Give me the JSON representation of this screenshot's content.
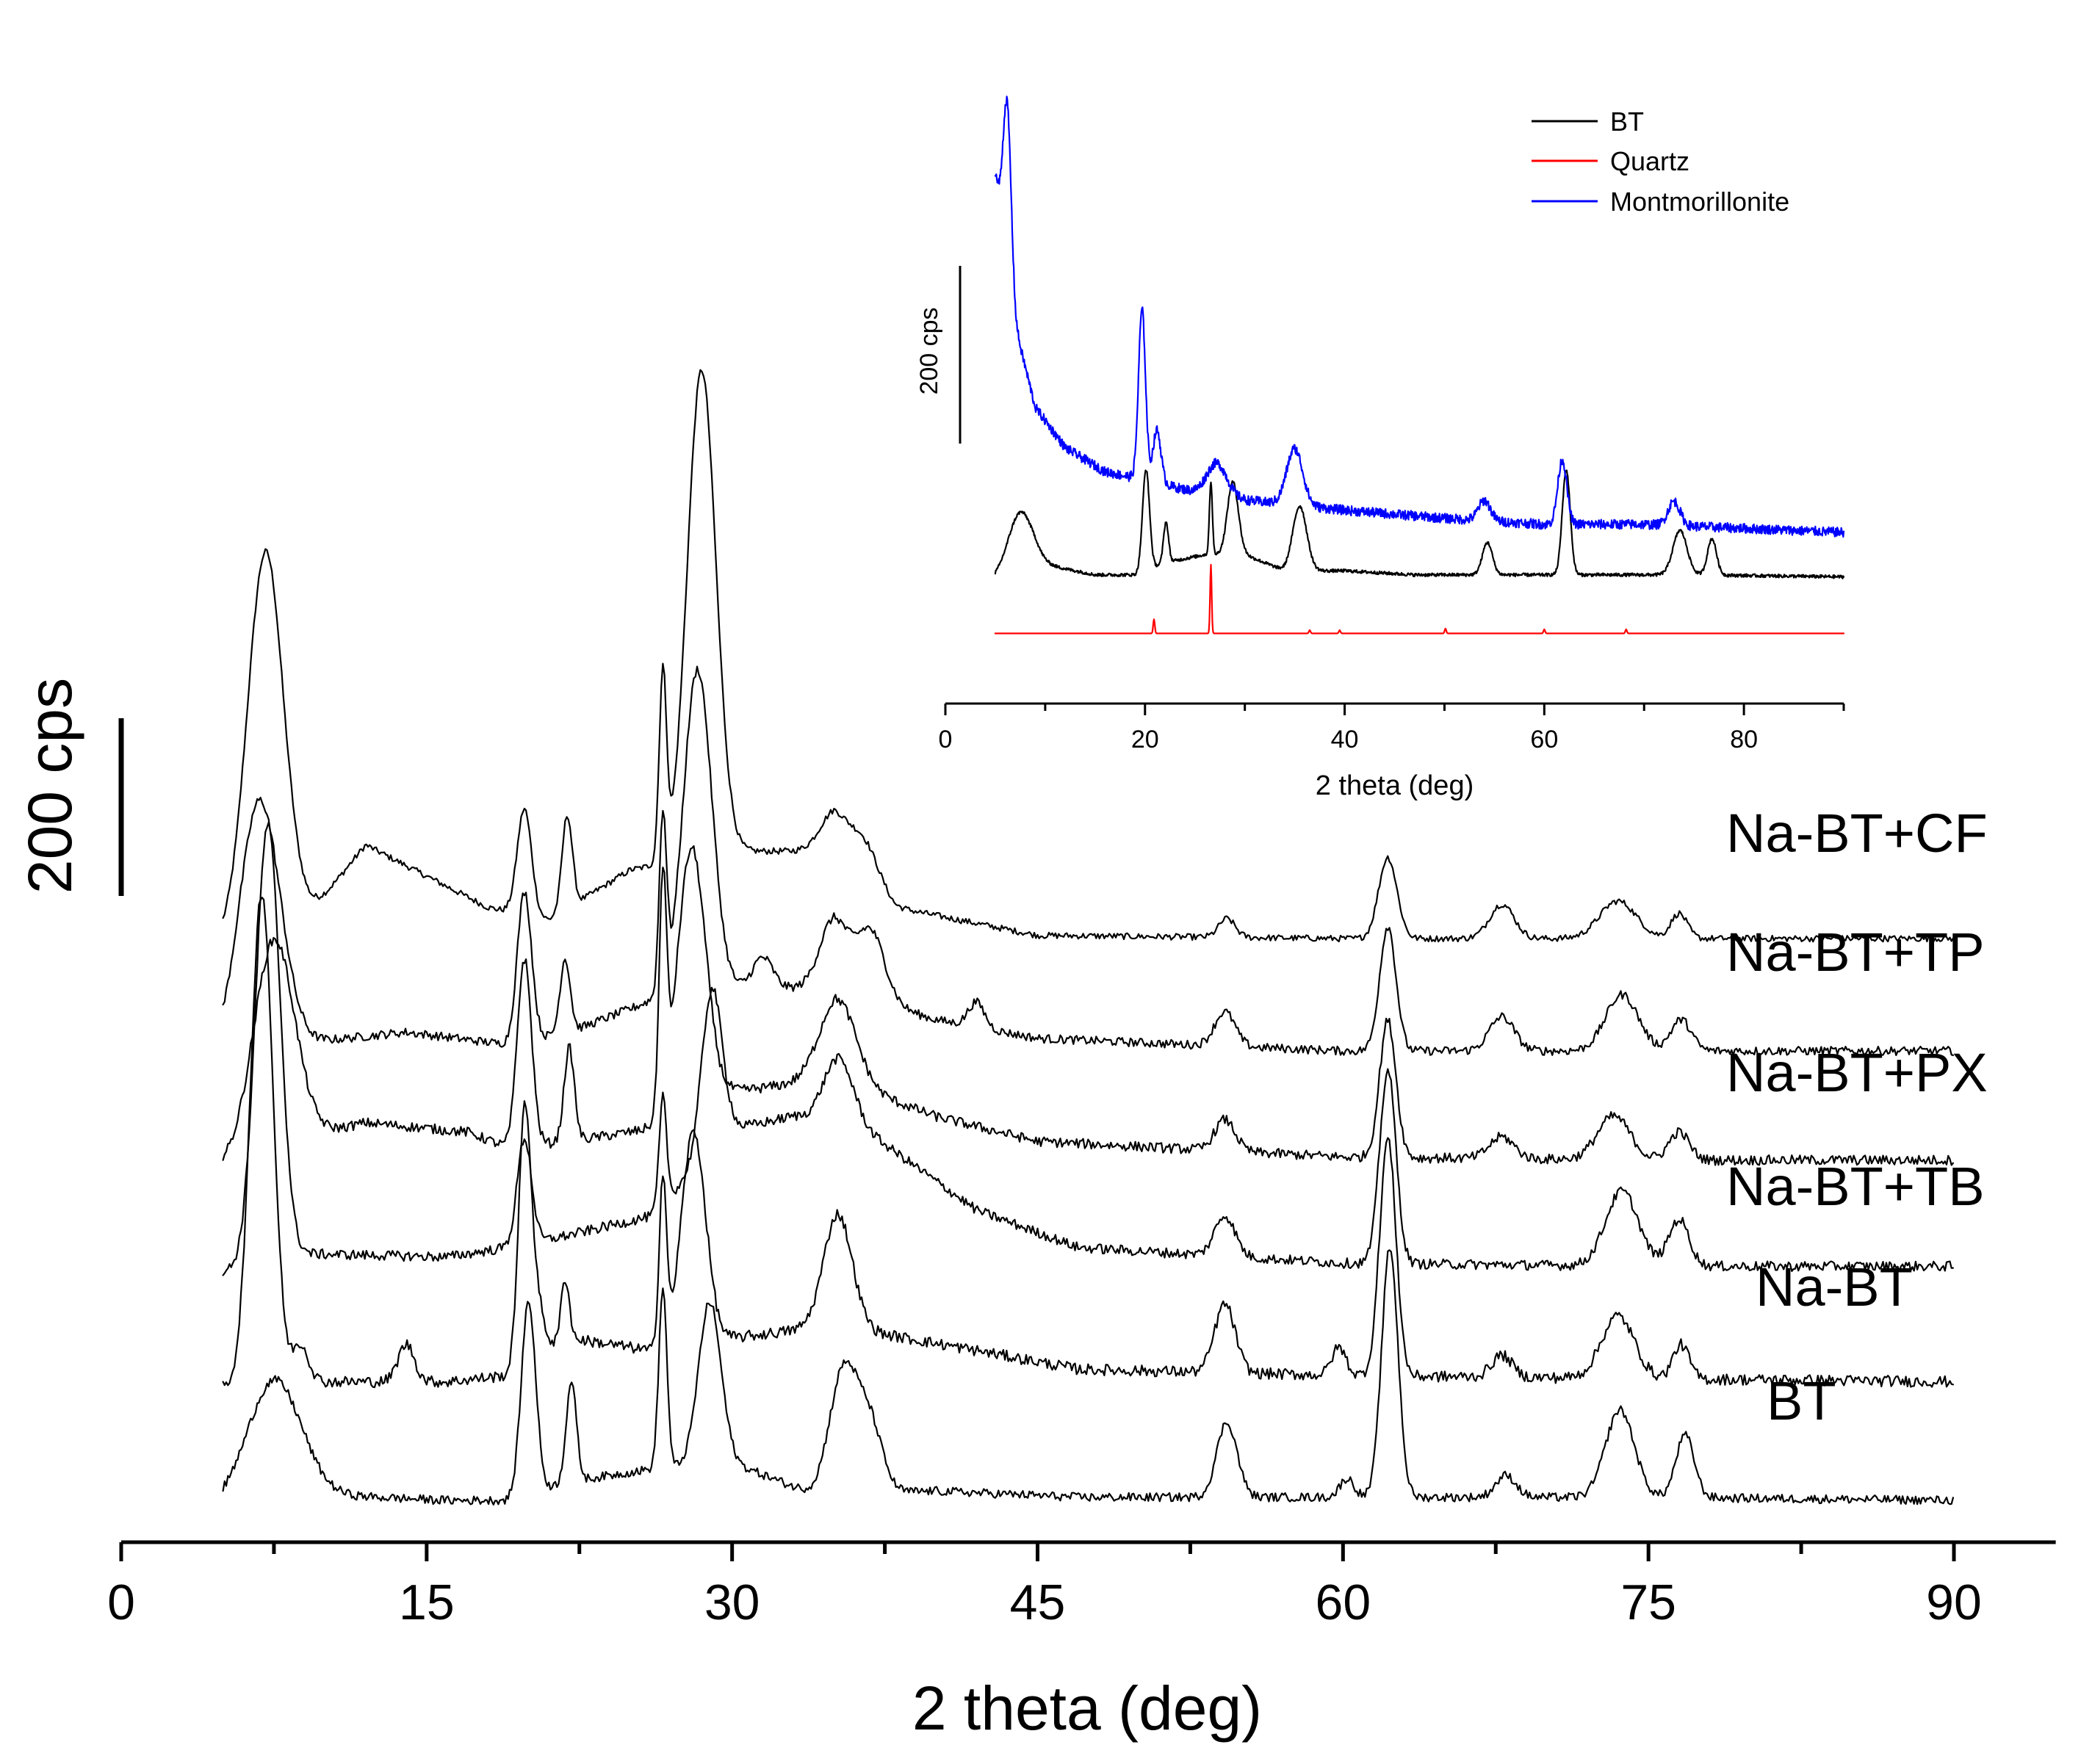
{
  "chart_data": [
    {
      "type": "line",
      "title": "",
      "xlabel": "2 theta (deg)",
      "ylabel": "",
      "xlim": [
        0,
        95
      ],
      "xticks": [
        0,
        15,
        30,
        45,
        60,
        75,
        90
      ],
      "xtick_labels": [
        "0",
        "15",
        "30",
        "45",
        "60",
        "75",
        "90"
      ],
      "scale_bar_label": "200 cps",
      "scale_bar_value": 200,
      "legend": "none (each trace labelled at right)",
      "series": [
        {
          "name": "Na-BT+CF",
          "label": "Na-BT+CF",
          "color": "#000000",
          "offset": 1110,
          "x_range": [
            5,
            90
          ],
          "noise": 5,
          "baseline": [
            [
              5,
              0
            ],
            [
              8,
              0
            ],
            [
              12,
              160
            ],
            [
              18,
              60
            ],
            [
              21,
              40
            ],
            [
              25,
              120
            ],
            [
              30,
              150
            ],
            [
              35,
              150
            ],
            [
              38,
              60
            ],
            [
              45,
              15
            ],
            [
              60,
              10
            ],
            [
              75,
              10
            ],
            [
              90,
              10
            ]
          ],
          "peaks": [
            [
              7.1,
              630,
              0.9
            ],
            [
              19.8,
              170,
              0.35
            ],
            [
              21.9,
              150,
              0.25
            ],
            [
              26.6,
              300,
              0.18
            ],
            [
              28.5,
              780,
              0.7
            ],
            [
              35.0,
              60,
              0.7
            ],
            [
              36.5,
              60,
              0.7
            ],
            [
              54.3,
              30,
              0.4
            ],
            [
              62.2,
              130,
              0.45
            ],
            [
              67.8,
              55,
              0.6
            ],
            [
              73.5,
              60,
              0.9
            ],
            [
              76.5,
              40,
              0.4
            ]
          ]
        },
        {
          "name": "Na-BT+TP",
          "label": "Na-BT+TP",
          "color": "#000000",
          "offset": 930,
          "x_range": [
            5,
            90
          ],
          "noise": 7,
          "baseline": [
            [
              5,
              0
            ],
            [
              8,
              20
            ],
            [
              14,
              40
            ],
            [
              19,
              20
            ],
            [
              22,
              40
            ],
            [
              26,
              90
            ],
            [
              30,
              110
            ],
            [
              35,
              110
            ],
            [
              40,
              60
            ],
            [
              45,
              30
            ],
            [
              60,
              10
            ],
            [
              75,
              10
            ],
            [
              90,
              10
            ]
          ],
          "peaks": [
            [
              6.8,
              400,
              1.0
            ],
            [
              19.8,
              240,
              0.35
            ],
            [
              21.8,
              120,
              0.25
            ],
            [
              26.6,
              280,
              0.18
            ],
            [
              28.3,
              520,
              0.7
            ],
            [
              31.5,
              50,
              0.5
            ],
            [
              35.0,
              110,
              0.7
            ],
            [
              36.8,
              110,
              0.7
            ],
            [
              42.0,
              40,
              0.4
            ],
            [
              54.2,
              55,
              0.5
            ],
            [
              62.2,
              200,
              0.4
            ],
            [
              67.8,
              55,
              0.6
            ],
            [
              73.7,
              90,
              0.8
            ],
            [
              76.6,
              50,
              0.5
            ]
          ]
        },
        {
          "name": "Na-BT+PX",
          "label": "Na-BT+PX",
          "color": "#000000",
          "offset": 755,
          "x_range": [
            5,
            90
          ],
          "noise": 8,
          "baseline": [
            [
              5,
              0
            ],
            [
              8,
              40
            ],
            [
              12,
              70
            ],
            [
              17,
              55
            ],
            [
              19,
              30
            ],
            [
              22,
              40
            ],
            [
              26,
              60
            ],
            [
              30,
              120
            ],
            [
              35,
              140
            ],
            [
              40,
              80
            ],
            [
              45,
              40
            ],
            [
              60,
              15
            ],
            [
              75,
              10
            ],
            [
              90,
              10
            ]
          ],
          "peaks": [
            [
              7.5,
              330,
              1.0
            ],
            [
              19.8,
              300,
              0.35
            ],
            [
              22.0,
              150,
              0.25
            ],
            [
              26.6,
              360,
              0.18
            ],
            [
              28.0,
              420,
              0.7
            ],
            [
              35.2,
              130,
              0.9
            ],
            [
              54.2,
              50,
              0.5
            ],
            [
              62.2,
              220,
              0.4
            ],
            [
              67.8,
              35,
              0.6
            ],
            [
              73.3,
              70,
              0.8
            ],
            [
              76.5,
              45,
              0.5
            ]
          ]
        },
        {
          "name": "Na-BT+TB",
          "label": "Na-BT+TB",
          "color": "#000000",
          "offset": 585,
          "x_range": [
            5,
            90
          ],
          "noise": 8,
          "baseline": [
            [
              5,
              0
            ],
            [
              9,
              30
            ],
            [
              16,
              25
            ],
            [
              19,
              40
            ],
            [
              22,
              60
            ],
            [
              26,
              90
            ],
            [
              30,
              230
            ],
            [
              33,
              250
            ],
            [
              36,
              240
            ],
            [
              42,
              100
            ],
            [
              47,
              40
            ],
            [
              60,
              15
            ],
            [
              75,
              10
            ],
            [
              90,
              10
            ]
          ],
          "peaks": [
            [
              7.2,
              700,
              0.6
            ],
            [
              19.8,
              170,
              0.35
            ],
            [
              26.6,
              170,
              0.18
            ],
            [
              29.0,
              260,
              0.5
            ],
            [
              35.2,
              100,
              0.7
            ],
            [
              54.2,
              65,
              0.5
            ],
            [
              62.2,
              310,
              0.4
            ],
            [
              73.7,
              120,
              0.8
            ],
            [
              76.5,
              75,
              0.5
            ]
          ]
        },
        {
          "name": "Na-BT",
          "label": "Na-BT",
          "color": "#000000",
          "offset": 400,
          "x_range": [
            5,
            90
          ],
          "noise": 9,
          "baseline": [
            [
              5,
              0
            ],
            [
              9,
              10
            ],
            [
              16,
              10
            ],
            [
              19,
              20
            ],
            [
              22,
              80
            ],
            [
              26,
              60
            ],
            [
              30,
              80
            ],
            [
              35,
              100
            ],
            [
              42,
              60
            ],
            [
              47,
              30
            ],
            [
              60,
              20
            ],
            [
              75,
              15
            ],
            [
              90,
              10
            ]
          ],
          "peaks": [
            [
              6.9,
              790,
              0.55
            ],
            [
              8.8,
              60,
              0.4
            ],
            [
              14.0,
              60,
              0.4
            ],
            [
              19.8,
              370,
              0.3
            ],
            [
              20.3,
              100,
              0.4
            ],
            [
              21.8,
              100,
              0.2
            ],
            [
              26.6,
              270,
              0.18
            ],
            [
              28.1,
              340,
              0.6
            ],
            [
              35.2,
              180,
              0.7
            ],
            [
              54.2,
              110,
              0.5
            ],
            [
              59.8,
              45,
              0.35
            ],
            [
              62.2,
              380,
              0.4
            ],
            [
              67.8,
              35,
              0.5
            ],
            [
              73.5,
              100,
              0.8
            ],
            [
              76.6,
              55,
              0.4
            ]
          ]
        },
        {
          "name": "BT",
          "label": "BT",
          "color": "#000000",
          "offset": 210,
          "x_range": [
            5,
            90
          ],
          "noise": 7,
          "baseline": [
            [
              5,
              0
            ],
            [
              9,
              20
            ],
            [
              16,
              10
            ],
            [
              19,
              10
            ],
            [
              22,
              40
            ],
            [
              26,
              60
            ],
            [
              30,
              70
            ],
            [
              34,
              20
            ],
            [
              40,
              25
            ],
            [
              47,
              15
            ],
            [
              60,
              15
            ],
            [
              75,
              15
            ],
            [
              90,
              10
            ]
          ],
          "peaks": [
            [
              7.5,
              190,
              1.3
            ],
            [
              20.0,
              310,
              0.35
            ],
            [
              22.1,
              160,
              0.25
            ],
            [
              26.6,
              290,
              0.2
            ],
            [
              28.9,
              260,
              0.55
            ],
            [
              35.5,
              200,
              0.7
            ],
            [
              36.8,
              100,
              0.6
            ],
            [
              54.3,
              120,
              0.5
            ],
            [
              60.2,
              30,
              0.35
            ],
            [
              62.3,
              400,
              0.4
            ],
            [
              68.0,
              35,
              0.5
            ],
            [
              73.6,
              140,
              0.7
            ],
            [
              76.8,
              100,
              0.45
            ]
          ]
        }
      ]
    },
    {
      "type": "line",
      "title": "",
      "xlabel": "2 theta (deg)",
      "ylabel": "",
      "xlim": [
        0,
        90
      ],
      "xticks": [
        0,
        20,
        40,
        60,
        80
      ],
      "xtick_labels": [
        "0",
        "20",
        "40",
        "60",
        "80"
      ],
      "scale_bar_label": "200 cps",
      "scale_bar_value": 200,
      "legend": "top-right",
      "series": [
        {
          "name": "BT",
          "label": "BT",
          "color": "#000000",
          "offset": 185,
          "x_range": [
            5,
            90
          ],
          "noise": 4,
          "baseline": [
            [
              5,
              0
            ],
            [
              9,
              40
            ],
            [
              15,
              10
            ],
            [
              19,
              10
            ],
            [
              22,
              40
            ],
            [
              26,
              60
            ],
            [
              30,
              60
            ],
            [
              34,
              20
            ],
            [
              40,
              20
            ],
            [
              47,
              10
            ],
            [
              60,
              10
            ],
            [
              75,
              10
            ],
            [
              90,
              5
            ]
          ],
          "peaks": [
            [
              7.5,
              140,
              1.2
            ],
            [
              20.1,
              250,
              0.35
            ],
            [
              22.1,
              100,
              0.25
            ],
            [
              26.6,
              180,
              0.15
            ],
            [
              28.8,
              180,
              0.55
            ],
            [
              35.5,
              160,
              0.7
            ],
            [
              54.3,
              80,
              0.5
            ],
            [
              62.2,
              260,
              0.4
            ],
            [
              73.6,
              110,
              0.7
            ],
            [
              76.8,
              90,
              0.45
            ]
          ]
        },
        {
          "name": "Quartz",
          "label": "Quartz",
          "color": "#ff0000",
          "offset": 50,
          "x_range": [
            5,
            90
          ],
          "noise": 0,
          "baseline": [
            [
              5,
              0
            ],
            [
              90,
              0
            ]
          ],
          "peaks": [
            [
              20.9,
              35,
              0.08
            ],
            [
              26.6,
              170,
              0.08
            ],
            [
              36.5,
              8,
              0.08
            ],
            [
              39.5,
              8,
              0.08
            ],
            [
              50.1,
              12,
              0.08
            ],
            [
              60.0,
              10,
              0.08
            ],
            [
              68.2,
              10,
              0.08
            ]
          ]
        },
        {
          "name": "Montmorillonite",
          "label": "Montmorillonite",
          "color": "#0000ff",
          "offset": 290,
          "x_range": [
            5,
            90
          ],
          "noise": 12,
          "baseline": [
            [
              5,
              900
            ],
            [
              5.8,
              750
            ],
            [
              7,
              520
            ],
            [
              9,
              320
            ],
            [
              12,
              220
            ],
            [
              16,
              160
            ],
            [
              20,
              140
            ],
            [
              25,
              110
            ],
            [
              30,
              90
            ],
            [
              40,
              65
            ],
            [
              50,
              45
            ],
            [
              60,
              30
            ],
            [
              70,
              30
            ],
            [
              80,
              20
            ],
            [
              90,
              10
            ]
          ],
          "peaks": [
            [
              6.2,
              400,
              0.4
            ],
            [
              19.7,
              420,
              0.35
            ],
            [
              21.2,
              130,
              0.4
            ],
            [
              27.2,
              80,
              1.0
            ],
            [
              35.0,
              140,
              0.8
            ],
            [
              54.0,
              50,
              0.6
            ],
            [
              61.8,
              160,
              0.45
            ],
            [
              73.0,
              60,
              0.6
            ]
          ]
        }
      ]
    }
  ]
}
